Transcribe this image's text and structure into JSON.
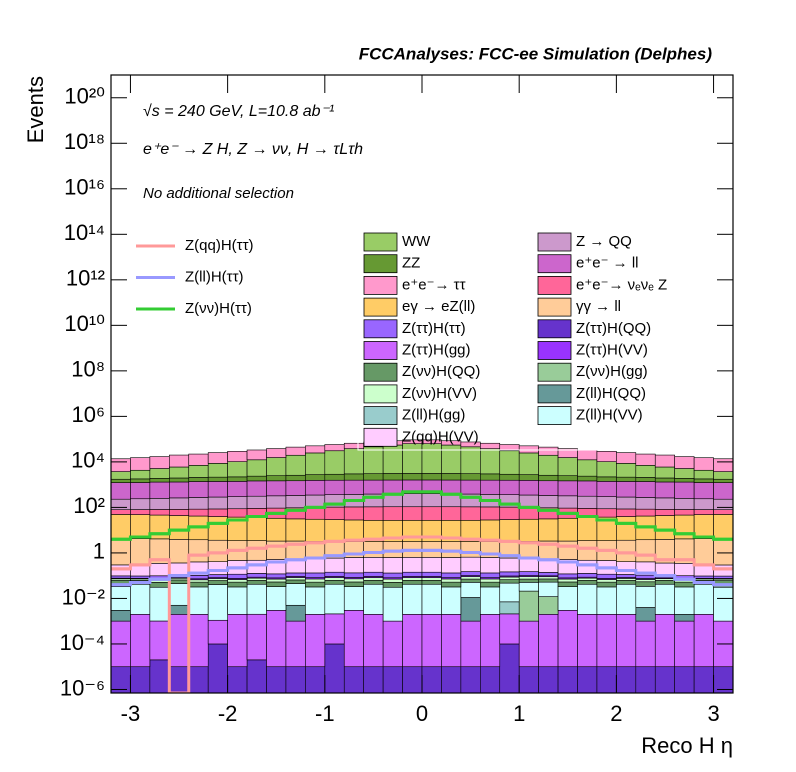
{
  "chart_data": {
    "type": "stacked_histogram",
    "title": "FCCAnalyses: FCC-ee Simulation (Delphes)",
    "annotations": [
      "√s = 240 GeV, L=10.8 ab⁻¹",
      "e⁺e⁻ → Z H, Z → νν, H → τLτh",
      "No additional selection"
    ],
    "x_label": "Reco H η",
    "y_label": "Events",
    "log_y": true,
    "xlim": [
      -3.2,
      3.2
    ],
    "xticks": [
      -3,
      -2,
      -1,
      0,
      1,
      2,
      3
    ],
    "ylim": [
      7e-07,
      1e+21
    ],
    "yticks": [
      {
        "value": 1e-06,
        "label": "10⁻⁶"
      },
      {
        "value": 0.0001,
        "label": "10⁻⁴"
      },
      {
        "value": 0.01,
        "label": "10⁻²"
      },
      1,
      {
        "value": 100,
        "label": "10²"
      },
      {
        "value": 10000,
        "label": "10⁴"
      },
      {
        "value": 1000000,
        "label": "10⁶"
      },
      {
        "value": 100000000,
        "label": "10⁸"
      },
      {
        "value": 10000000000,
        "label": "10¹⁰"
      },
      {
        "value": 1000000000000,
        "label": "10¹²"
      },
      {
        "value": 100000000000000,
        "label": "10¹⁴"
      },
      {
        "value": 10000000000000000,
        "label": "10¹⁶"
      },
      {
        "value": 1000000000000000000,
        "label": "10¹⁸"
      },
      {
        "value": 100000000000000000000,
        "label": "10²⁰"
      }
    ],
    "bins": [
      -3.2,
      -3.0,
      -2.8,
      -2.6,
      -2.4,
      -2.2,
      -2.0,
      -1.8,
      -1.6,
      -1.4,
      -1.2,
      -1.0,
      -0.8,
      -0.6,
      -0.4,
      -0.2,
      0,
      0.2,
      0.4,
      0.6,
      0.8,
      1.0,
      1.2,
      1.4,
      1.6,
      1.8,
      2.0,
      2.2,
      2.4,
      2.6,
      2.8,
      3.0,
      3.2
    ],
    "series": [
      {
        "name": "Z(ττ)H(QQ)",
        "color": "#6633cc",
        "values": [
          1e-05,
          1e-05,
          2e-05,
          1e-05,
          1e-05,
          0.0001,
          1e-05,
          2e-05,
          1e-05,
          1e-05,
          1e-05,
          0.0001,
          1e-05,
          1e-05,
          1e-05,
          1e-05,
          1e-05,
          1e-05,
          1e-05,
          1e-05,
          0.0001,
          1e-05,
          1e-05,
          1e-05,
          1e-05,
          1e-05,
          1e-05,
          1e-05,
          1e-05,
          1e-05,
          1e-05,
          1e-05
        ]
      },
      {
        "name": "Z(ττ)H(gg)",
        "color": "#cc66ff",
        "values": [
          0.001,
          0.002,
          0.001,
          0.002,
          0.002,
          0.001,
          0.002,
          0.002,
          0.003,
          0.001,
          0.002,
          0.002,
          0.003,
          0.002,
          0.001,
          0.002,
          0.002,
          0.002,
          0.001,
          0.002,
          0.002,
          0.001,
          0.002,
          0.003,
          0.002,
          0.002,
          0.002,
          0.001,
          0.002,
          0.001,
          0.002,
          0.001
        ]
      },
      {
        "name": "Z(ll)H(QQ)",
        "color": "#669999",
        "values": [
          0.002,
          0,
          0,
          0.003,
          0,
          0,
          0,
          0,
          0,
          0.004,
          0,
          0,
          0,
          0,
          0,
          0,
          0,
          0,
          0.01,
          0,
          0,
          0,
          0,
          0,
          0,
          0,
          0,
          0.003,
          0,
          0.001,
          0,
          0
        ]
      },
      {
        "name": "Z(ll)H(gg)",
        "color": "#99cccc",
        "values": [
          0,
          0,
          0,
          0,
          0,
          0,
          0,
          0,
          0,
          0,
          0,
          0,
          0,
          0,
          0,
          0,
          0,
          0,
          0,
          0,
          0.005,
          0,
          0,
          0,
          0,
          0,
          0,
          0,
          0,
          0,
          0,
          0
        ]
      },
      {
        "name": "Z(νν)H(gg)",
        "color": "#99cc99",
        "values": [
          0,
          0,
          0,
          0,
          0,
          0,
          0,
          0,
          0,
          0,
          0,
          0,
          0,
          0,
          0,
          0,
          0,
          0,
          0,
          0,
          0,
          0.02,
          0.01,
          0,
          0,
          0,
          0,
          0,
          0,
          0,
          0,
          0
        ]
      },
      {
        "name": "Z(ll)H(VV)",
        "color": "#ccffff",
        "values": [
          0.03,
          0.04,
          0.03,
          0.04,
          0.03,
          0.04,
          0.03,
          0.04,
          0.03,
          0.04,
          0.03,
          0.04,
          0.03,
          0.04,
          0.03,
          0.04,
          0.04,
          0.03,
          0.04,
          0.03,
          0.04,
          0.03,
          0.04,
          0.03,
          0.04,
          0.03,
          0.04,
          0.03,
          0.04,
          0.03,
          0.04,
          0.03
        ]
      },
      {
        "name": "Z(νν)H(QQ)",
        "color": "#669966",
        "values": [
          0.03,
          0.02,
          0.02,
          0.02,
          0.02,
          0.02,
          0.02,
          0.02,
          0.02,
          0.02,
          0.02,
          0.02,
          0.02,
          0.02,
          0.02,
          0.02,
          0.02,
          0.02,
          0.02,
          0.02,
          0.02,
          0.02,
          0.02,
          0.02,
          0.02,
          0.02,
          0.02,
          0.02,
          0.02,
          0.02,
          0.02,
          0.03
        ]
      },
      {
        "name": "Z(νν)H(VV)",
        "color": "#ccffcc",
        "values": [
          0.01,
          0.01,
          0.012,
          0.012,
          0.014,
          0.014,
          0.016,
          0.016,
          0.018,
          0.018,
          0.02,
          0.02,
          0.02,
          0.02,
          0.02,
          0.02,
          0.02,
          0.02,
          0.02,
          0.02,
          0.02,
          0.02,
          0.018,
          0.018,
          0.016,
          0.016,
          0.014,
          0.014,
          0.012,
          0.012,
          0.01,
          0.01
        ]
      },
      {
        "name": "Z(ττ)H(VV)",
        "color": "#9933ff",
        "values": [
          0.005,
          0.005,
          0.006,
          0.006,
          0.007,
          0.007,
          0.008,
          0.008,
          0.009,
          0.009,
          0.01,
          0.01,
          0.01,
          0.01,
          0.01,
          0.01,
          0.01,
          0.01,
          0.01,
          0.01,
          0.01,
          0.01,
          0.009,
          0.009,
          0.008,
          0.008,
          0.007,
          0.007,
          0.006,
          0.006,
          0.005,
          0.005
        ]
      },
      {
        "name": "Z(ττ)H(ττ)",
        "color": "#9966ff",
        "values": [
          0.02,
          0.02,
          0.03,
          0.03,
          0.03,
          0.03,
          0.04,
          0.04,
          0.04,
          0.04,
          0.05,
          0.05,
          0.05,
          0.05,
          0.05,
          0.05,
          0.05,
          0.05,
          0.05,
          0.05,
          0.05,
          0.05,
          0.04,
          0.04,
          0.04,
          0.04,
          0.03,
          0.03,
          0.03,
          0.03,
          0.02,
          0.02
        ]
      },
      {
        "name": "Z(qq)H(VV)",
        "color": "#ffccff",
        "values": [
          0.2,
          0.2,
          0.25,
          0.25,
          0.3,
          0.3,
          0.35,
          0.35,
          0.4,
          0.4,
          0.45,
          0.45,
          0.5,
          0.5,
          0.5,
          0.5,
          0.5,
          0.5,
          0.5,
          0.5,
          0.45,
          0.45,
          0.4,
          0.4,
          0.35,
          0.35,
          0.3,
          0.3,
          0.25,
          0.25,
          0.2,
          0.2
        ]
      },
      {
        "name": "γγ → ll",
        "color": "#ffcc99",
        "values": [
          4,
          4,
          3.8,
          3.6,
          3.4,
          3.2,
          3,
          3,
          2.8,
          2.8,
          2.6,
          2.6,
          2.5,
          2.5,
          2.5,
          2.5,
          2.5,
          2.5,
          2.5,
          2.5,
          2.6,
          2.6,
          2.8,
          2.8,
          3,
          3,
          3.2,
          3.4,
          3.6,
          3.8,
          4,
          4
        ]
      },
      {
        "name": "eγ → eZ(ll)",
        "color": "#ffcc66",
        "values": [
          45,
          44,
          42,
          40,
          38,
          36,
          34,
          32,
          30,
          28,
          27,
          26,
          25,
          24,
          24,
          24,
          24,
          24,
          24,
          25,
          26,
          27,
          28,
          30,
          32,
          34,
          36,
          38,
          40,
          42,
          44,
          45
        ]
      },
      {
        "name": "e⁺e⁻→ νₑνₑ Z",
        "color": "#ff6699",
        "values": [
          30,
          32,
          35,
          38,
          42,
          46,
          50,
          55,
          60,
          65,
          70,
          74,
          77,
          79,
          80,
          80,
          80,
          80,
          79,
          77,
          74,
          70,
          65,
          60,
          55,
          50,
          46,
          42,
          38,
          35,
          32,
          30
        ]
      },
      {
        "name": "Z → QQ",
        "color": "#cc99cc",
        "values": [
          150,
          160,
          170,
          180,
          190,
          200,
          210,
          220,
          230,
          240,
          250,
          260,
          270,
          280,
          290,
          300,
          300,
          290,
          280,
          270,
          260,
          250,
          240,
          230,
          220,
          210,
          200,
          190,
          180,
          170,
          160,
          150
        ]
      },
      {
        "name": "e⁺e⁻ → ll",
        "color": "#cc66cc",
        "values": [
          1000,
          1000,
          1050,
          1050,
          1100,
          1100,
          1100,
          1150,
          1150,
          1150,
          1200,
          1200,
          1200,
          1200,
          1200,
          1200,
          1200,
          1200,
          1200,
          1200,
          1200,
          1200,
          1150,
          1150,
          1150,
          1100,
          1100,
          1100,
          1050,
          1050,
          1000,
          1000
        ]
      },
      {
        "name": "ZZ",
        "color": "#669933",
        "values": [
          500,
          550,
          600,
          650,
          700,
          750,
          800,
          900,
          1000,
          1100,
          1200,
          1300,
          1400,
          1450,
          1500,
          1500,
          1500,
          1500,
          1450,
          1400,
          1300,
          1200,
          1100,
          1000,
          900,
          800,
          750,
          700,
          650,
          600,
          550,
          500
        ]
      },
      {
        "name": "WW",
        "color": "#99cc66",
        "values": [
          2000,
          2500,
          3200,
          4000,
          5000,
          6500,
          8000,
          10000,
          13000,
          17000,
          22000,
          28000,
          35000,
          43000,
          52000,
          60000,
          60000,
          52000,
          43000,
          35000,
          28000,
          22000,
          17000,
          13000,
          10000,
          8000,
          6500,
          5000,
          4000,
          3200,
          2500,
          2000
        ]
      },
      {
        "name": "e⁺e⁻→ ττ",
        "color": "#ff99cc",
        "values": [
          10000,
          11000,
          12000,
          14000,
          15000,
          17000,
          19000,
          21000,
          23000,
          25000,
          26000,
          27000,
          28000,
          29000,
          30000,
          30000,
          30000,
          30000,
          29000,
          28000,
          27000,
          26000,
          25000,
          23000,
          21000,
          19000,
          17000,
          15000,
          14000,
          12000,
          11000,
          10000
        ]
      }
    ],
    "lines": [
      {
        "name": "Z(qq)H(ττ)",
        "color": "#ff9999",
        "values": [
          0.2,
          0.3,
          0.5,
          0,
          0.8,
          1,
          1.3,
          1.6,
          2,
          2.4,
          2.8,
          3.2,
          3.6,
          4,
          4.5,
          5,
          5,
          4.5,
          4,
          3.6,
          3.2,
          2.8,
          2.4,
          2,
          1.6,
          1.3,
          1,
          0.8,
          0.5,
          0.5,
          0.3,
          0.2
        ]
      },
      {
        "name": "Z(ll)H(ττ)",
        "color": "#9999ff",
        "values": [
          0.04,
          0.05,
          0.07,
          0.1,
          0.13,
          0.17,
          0.22,
          0.3,
          0.4,
          0.5,
          0.6,
          0.75,
          0.9,
          1.05,
          1.2,
          1.3,
          1.3,
          1.2,
          1.05,
          0.9,
          0.75,
          0.6,
          0.5,
          0.4,
          0.3,
          0.22,
          0.17,
          0.13,
          0.1,
          0.07,
          0.05,
          0.04
        ]
      },
      {
        "name": "Z(νν)H(ττ)",
        "color": "#33cc33",
        "values": [
          4,
          5,
          7,
          10,
          14,
          20,
          28,
          40,
          55,
          75,
          100,
          140,
          200,
          280,
          380,
          480,
          480,
          380,
          280,
          200,
          140,
          100,
          75,
          55,
          40,
          28,
          20,
          14,
          10,
          7,
          5,
          4
        ]
      }
    ]
  }
}
